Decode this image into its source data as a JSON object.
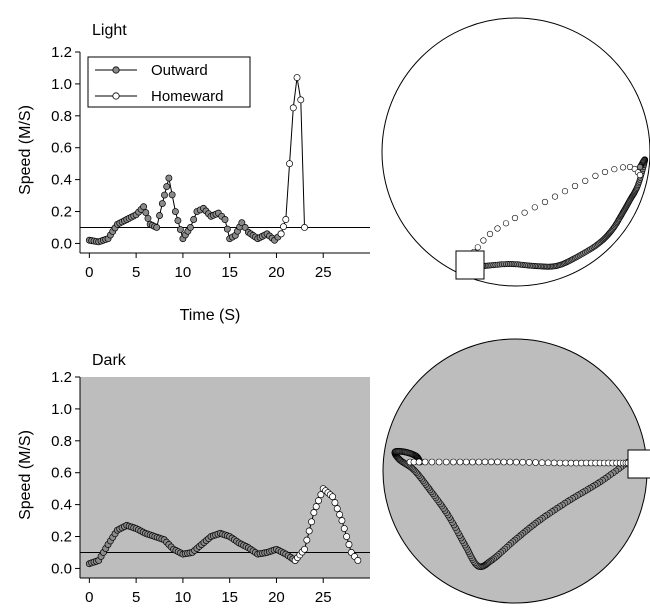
{
  "chart_data": [
    {
      "type": "line",
      "panel": "light-speed",
      "title": "Light",
      "xlabel": "Time (S)",
      "ylabel": "Speed (M/S)",
      "xlim": [
        -1,
        30
      ],
      "ylim": [
        -0.06,
        1.2
      ],
      "x_ticks": [
        0,
        5,
        10,
        15,
        20,
        25
      ],
      "y_ticks": [
        "0.0",
        "0.2",
        "0.4",
        "0.6",
        "0.8",
        "1.0",
        "1.2"
      ],
      "threshold": 0.1,
      "background": "#ffffff",
      "legend": {
        "position": "top-left"
      },
      "series": [
        {
          "name": "Outward",
          "marker_fill": "#8a8a8a",
          "points": [
            [
              0,
              0.02
            ],
            [
              1,
              0.01
            ],
            [
              2,
              0.03
            ],
            [
              3,
              0.12
            ],
            [
              4,
              0.15
            ],
            [
              5,
              0.18
            ],
            [
              5.8,
              0.23
            ],
            [
              6.5,
              0.12
            ],
            [
              7.2,
              0.1
            ],
            [
              7.8,
              0.25
            ],
            [
              8.5,
              0.41
            ],
            [
              9.2,
              0.2
            ],
            [
              10,
              0.03
            ],
            [
              10.8,
              0.1
            ],
            [
              11.5,
              0.2
            ],
            [
              12.2,
              0.22
            ],
            [
              13,
              0.17
            ],
            [
              13.8,
              0.19
            ],
            [
              14.5,
              0.15
            ],
            [
              15,
              0.03
            ],
            [
              15.6,
              0.05
            ],
            [
              16.3,
              0.13
            ],
            [
              17,
              0.07
            ],
            [
              18,
              0.03
            ],
            [
              19,
              0.06
            ],
            [
              19.8,
              0.02
            ],
            [
              20.5,
              0.06
            ]
          ]
        },
        {
          "name": "Homeward",
          "marker_fill": "#ffffff",
          "points": [
            [
              20.5,
              0.06
            ],
            [
              21,
              0.15
            ],
            [
              21.4,
              0.5
            ],
            [
              21.8,
              0.85
            ],
            [
              22.2,
              1.04
            ],
            [
              22.6,
              0.9
            ],
            [
              23,
              0.1
            ]
          ]
        }
      ]
    },
    {
      "type": "line",
      "panel": "dark-speed",
      "title": "Dark",
      "xlabel": "",
      "ylabel": "Speed (M/S)",
      "xlim": [
        -1,
        30
      ],
      "ylim": [
        -0.06,
        1.2
      ],
      "x_ticks": [
        0,
        5,
        10,
        15,
        20,
        25
      ],
      "y_ticks": [
        "0.0",
        "0.2",
        "0.4",
        "0.6",
        "0.8",
        "1.0",
        "1.2"
      ],
      "threshold": 0.1,
      "background": "#bdbdbd",
      "series": [
        {
          "name": "Outward",
          "marker_fill": "#8a8a8a",
          "points": [
            [
              0,
              0.03
            ],
            [
              1,
              0.05
            ],
            [
              2,
              0.15
            ],
            [
              3,
              0.24
            ],
            [
              4,
              0.27
            ],
            [
              5,
              0.25
            ],
            [
              6,
              0.22
            ],
            [
              7,
              0.2
            ],
            [
              8,
              0.18
            ],
            [
              9,
              0.12
            ],
            [
              10,
              0.09
            ],
            [
              11,
              0.1
            ],
            [
              12,
              0.15
            ],
            [
              13,
              0.2
            ],
            [
              14,
              0.22
            ],
            [
              15,
              0.2
            ],
            [
              16,
              0.16
            ],
            [
              17,
              0.13
            ],
            [
              18,
              0.09
            ],
            [
              19,
              0.1
            ],
            [
              20,
              0.12
            ],
            [
              21,
              0.09
            ],
            [
              22,
              0.05
            ]
          ]
        },
        {
          "name": "Homeward",
          "marker_fill": "#ffffff",
          "points": [
            [
              22,
              0.05
            ],
            [
              23,
              0.12
            ],
            [
              24,
              0.35
            ],
            [
              25,
              0.5
            ],
            [
              26,
              0.45
            ],
            [
              27,
              0.3
            ],
            [
              28,
              0.1
            ],
            [
              28.7,
              0.05
            ]
          ]
        }
      ]
    }
  ],
  "arenas": [
    {
      "name": "light-arena",
      "background": "#ffffff",
      "outward_marker_fill": "#8a8a8a",
      "homeward_marker_fill": "#ffffff"
    },
    {
      "name": "dark-arena",
      "background": "#bdbdbd",
      "outward_marker_fill": "#8a8a8a",
      "homeward_marker_fill": "#ffffff"
    }
  ]
}
